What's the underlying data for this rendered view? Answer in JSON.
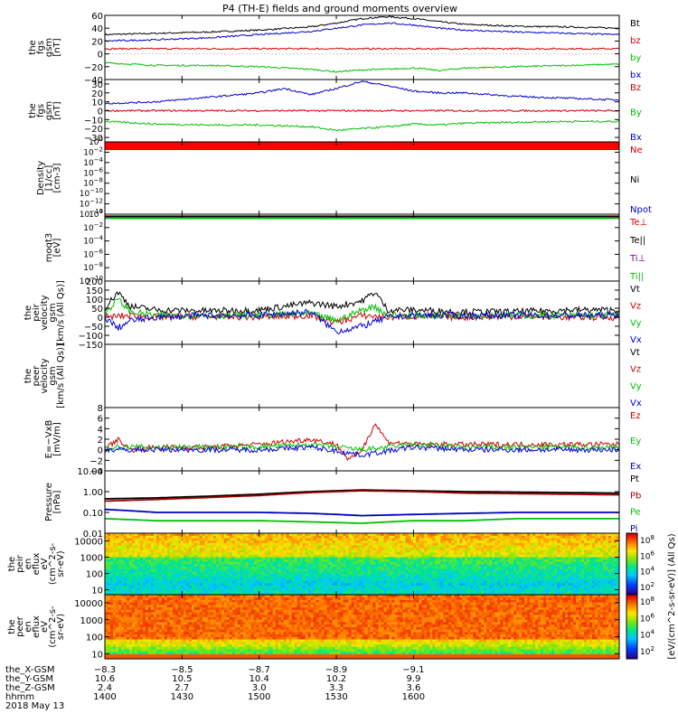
{
  "title": "P4 (TH-E) fields and ground moments overview",
  "chart_data": [
    {
      "type": "line",
      "ylabel_lines": [
        "the",
        "fgs",
        "gsm",
        "[nT]"
      ],
      "ylim": [
        -40,
        60
      ],
      "ticks": [
        -40,
        -20,
        0,
        20,
        40,
        60
      ],
      "tick_labels": [
        "−40",
        "−20",
        "0",
        "20",
        "40",
        "60"
      ],
      "legend": [
        "Bt",
        "bz",
        "by",
        "bx"
      ],
      "series": [
        {
          "name": "Bt",
          "color": "#000000",
          "x": [
            1400,
            1420,
            1440,
            1460,
            1480,
            1490,
            1500,
            1510,
            1520,
            1530,
            1540,
            1560,
            1580,
            1600
          ],
          "values": [
            30,
            32,
            34,
            37,
            42,
            48,
            55,
            58,
            55,
            50,
            46,
            43,
            42,
            40
          ]
        },
        {
          "name": "bz",
          "color": "#d00000",
          "x": [
            1400,
            1450,
            1500,
            1550,
            1600
          ],
          "values": [
            8,
            8,
            8,
            8,
            8
          ]
        },
        {
          "name": "by",
          "color": "#00c000",
          "x": [
            1400,
            1420,
            1440,
            1460,
            1480,
            1490,
            1500,
            1510,
            1520,
            1530,
            1540,
            1560,
            1580,
            1600
          ],
          "values": [
            -14,
            -18,
            -18,
            -20,
            -24,
            -28,
            -25,
            -24,
            -22,
            -26,
            -22,
            -20,
            -18,
            -16
          ]
        },
        {
          "name": "bx",
          "color": "#0000d0",
          "x": [
            1400,
            1420,
            1440,
            1460,
            1480,
            1490,
            1500,
            1510,
            1520,
            1530,
            1540,
            1560,
            1580,
            1600
          ],
          "values": [
            20,
            22,
            25,
            30,
            35,
            40,
            45,
            48,
            45,
            40,
            37,
            34,
            32,
            30
          ]
        }
      ]
    },
    {
      "type": "line",
      "ylabel_lines": [
        "the",
        "fgs",
        "gsm",
        "[nT]"
      ],
      "ylim": [
        -35,
        35
      ],
      "ticks": [
        -30,
        -20,
        -10,
        0,
        10,
        20,
        30
      ],
      "tick_labels": [
        "−30",
        "−20",
        "−10",
        "0",
        "10",
        "20",
        "30"
      ],
      "legend": [
        "Bz",
        "By",
        "Bx"
      ],
      "series": [
        {
          "name": "Bz",
          "color": "#d00000",
          "x": [
            1400,
            1450,
            1500,
            1550,
            1600
          ],
          "values": [
            0,
            0,
            0,
            0,
            0
          ]
        },
        {
          "name": "By",
          "color": "#00c000",
          "x": [
            1400,
            1420,
            1440,
            1460,
            1480,
            1490,
            1500,
            1510,
            1520,
            1530,
            1540,
            1560,
            1580,
            1600
          ],
          "values": [
            -12,
            -15,
            -16,
            -16,
            -18,
            -22,
            -20,
            -18,
            -15,
            -16,
            -14,
            -13,
            -12,
            -12
          ]
        },
        {
          "name": "Bx",
          "color": "#0000d0",
          "x": [
            1400,
            1420,
            1440,
            1460,
            1470,
            1480,
            1490,
            1500,
            1510,
            1520,
            1530,
            1540,
            1560,
            1580,
            1600
          ],
          "values": [
            8,
            10,
            15,
            20,
            25,
            18,
            25,
            33,
            28,
            22,
            20,
            20,
            16,
            14,
            12
          ]
        }
      ]
    },
    {
      "type": "line",
      "ylabel_lines": [
        "Density",
        "[1/cc]",
        "[cm-3]"
      ],
      "yscale": "log",
      "ylim": [
        1e-14,
        1
      ],
      "tick_exps": [
        0,
        -2,
        -4,
        -6,
        -8,
        -10,
        -12,
        -14
      ],
      "legend": [
        "Ne",
        "Ni",
        "Npot"
      ],
      "series": [
        {
          "name": "Ne",
          "color": "#d00000",
          "x": [
            1400,
            1600
          ],
          "values": [
            0.3,
            0.3
          ]
        },
        {
          "name": "Ni",
          "color": "#000000",
          "x": [
            1400,
            1600
          ],
          "values": [
            0.2,
            0.2
          ]
        },
        {
          "name": "Npot",
          "color": "#0000d0",
          "x": [
            1400,
            1600
          ],
          "values": [
            0.15,
            0.15
          ]
        }
      ]
    },
    {
      "type": "line",
      "ylabel_lines": [
        "moqt3",
        "[eV]"
      ],
      "yscale": "log",
      "ylim": [
        1e-10,
        1
      ],
      "tick_exps": [
        0,
        -2,
        -4,
        -6,
        -8,
        -10
      ],
      "legend": [
        "Te⊥",
        "Te||",
        "Ti⊥",
        "Ti||"
      ],
      "legend_colors": [
        "#d00000",
        "#000000",
        "#8000c0",
        "#00c000"
      ],
      "series": [
        {
          "name": "Te⊥",
          "color": "#d00000",
          "x": [
            1400,
            1600
          ],
          "values": [
            0.5,
            0.5
          ]
        },
        {
          "name": "Te||",
          "color": "#000000",
          "x": [
            1400,
            1600
          ],
          "values": [
            0.4,
            0.4
          ]
        },
        {
          "name": "Ti⊥",
          "color": "#8000c0",
          "x": [
            1400,
            1600
          ],
          "values": [
            0.3,
            0.3
          ]
        },
        {
          "name": "Ti||",
          "color": "#00c000",
          "x": [
            1400,
            1600
          ],
          "values": [
            0.25,
            0.25
          ]
        }
      ]
    },
    {
      "type": "line",
      "ylabel_lines": [
        "the",
        "peir",
        "velocity",
        "gsm",
        "[km/s (All Qs)]"
      ],
      "ylim": [
        -150,
        200
      ],
      "ticks": [
        -150,
        -100,
        -50,
        0,
        50,
        100,
        150,
        200
      ],
      "tick_labels": [
        "−150",
        "−100",
        "−50",
        "0",
        "50",
        "100",
        "150",
        "200"
      ],
      "legend": [
        "Vt",
        "Vz",
        "Vy",
        "Vx"
      ],
      "series": [
        {
          "name": "Vt",
          "color": "#000000",
          "x": [
            1400,
            1405,
            1410,
            1420,
            1440,
            1460,
            1480,
            1490,
            1500,
            1505,
            1510,
            1520,
            1540,
            1560,
            1580,
            1600
          ],
          "values": [
            50,
            140,
            60,
            40,
            35,
            40,
            80,
            60,
            90,
            140,
            40,
            40,
            30,
            30,
            40,
            40
          ]
        },
        {
          "name": "Vz",
          "color": "#d00000",
          "x": [
            1400,
            1410,
            1420,
            1440,
            1460,
            1480,
            1490,
            1500,
            1510,
            1520,
            1540,
            1560,
            1580,
            1600
          ],
          "values": [
            0,
            10,
            0,
            5,
            0,
            10,
            -30,
            10,
            0,
            5,
            0,
            5,
            0,
            0
          ]
        },
        {
          "name": "Vy",
          "color": "#00c000",
          "x": [
            1400,
            1405,
            1410,
            1420,
            1440,
            1460,
            1480,
            1490,
            1500,
            1505,
            1510,
            1520,
            1540,
            1560,
            1580,
            1600
          ],
          "values": [
            20,
            100,
            30,
            10,
            10,
            10,
            20,
            -20,
            40,
            60,
            10,
            10,
            10,
            10,
            10,
            10
          ]
        },
        {
          "name": "Vx",
          "color": "#0000d0",
          "x": [
            1400,
            1405,
            1410,
            1420,
            1440,
            1460,
            1480,
            1490,
            1500,
            1510,
            1520,
            1540,
            1560,
            1580,
            1600
          ],
          "values": [
            0,
            -60,
            -20,
            0,
            10,
            10,
            30,
            -80,
            -50,
            0,
            10,
            10,
            10,
            10,
            10
          ]
        }
      ]
    },
    {
      "type": "line",
      "ylabel_lines": [
        "the",
        "peer",
        "velocity",
        "gsm",
        "[km/s (All Qs)]"
      ],
      "ylim": [
        0,
        1
      ],
      "ticks": [],
      "tick_labels": [],
      "legend": [
        "Vt",
        "Vz",
        "Vy",
        "Vx"
      ],
      "series": []
    },
    {
      "type": "line",
      "ylabel_lines": [
        "E=−VxB",
        "[mV/m]"
      ],
      "ylim": [
        -4,
        8
      ],
      "ticks": [
        -4,
        -2,
        0,
        2,
        4,
        6,
        8
      ],
      "tick_labels": [
        "−4",
        "−2",
        "0",
        "2",
        "4",
        "6",
        "8"
      ],
      "legend": [
        "Ez",
        "Ey",
        "Ex"
      ],
      "series": [
        {
          "name": "Ez",
          "color": "#d00000",
          "x": [
            1400,
            1405,
            1410,
            1420,
            1440,
            1460,
            1480,
            1490,
            1495,
            1500,
            1505,
            1510,
            1520,
            1540,
            1560,
            1580,
            1600
          ],
          "values": [
            0,
            2,
            0,
            0.5,
            0.5,
            1,
            2,
            1,
            -2,
            0,
            5,
            1.5,
            1,
            1,
            1,
            1,
            1
          ]
        },
        {
          "name": "Ey",
          "color": "#00c000",
          "x": [
            1400,
            1420,
            1440,
            1460,
            1480,
            1500,
            1520,
            1540,
            1560,
            1580,
            1600
          ],
          "values": [
            0.5,
            0.5,
            0.5,
            0.5,
            1,
            0,
            1,
            0.5,
            0.5,
            0.5,
            0.5
          ]
        },
        {
          "name": "Ex",
          "color": "#0000d0",
          "x": [
            1400,
            1420,
            1440,
            1460,
            1480,
            1500,
            1520,
            1540,
            1560,
            1580,
            1600
          ],
          "values": [
            0,
            0,
            0,
            0,
            0.5,
            -1,
            0.5,
            0,
            0,
            0,
            0
          ]
        }
      ]
    },
    {
      "type": "line",
      "ylabel_lines": [
        "Pressure",
        "[nPa]"
      ],
      "yscale": "log",
      "ylim": [
        0.01,
        10
      ],
      "ticks": [
        0.01,
        0.1,
        1,
        10
      ],
      "tick_labels": [
        "0.01",
        "0.10",
        "1.00",
        "10.00"
      ],
      "legend": [
        "Pt",
        "Pb",
        "Pe",
        "Pi"
      ],
      "series": [
        {
          "name": "Pt",
          "color": "#000000",
          "x": [
            1400,
            1420,
            1440,
            1460,
            1480,
            1500,
            1520,
            1540,
            1560,
            1580,
            1600
          ],
          "values": [
            0.45,
            0.5,
            0.6,
            0.75,
            1.0,
            1.2,
            1.1,
            1.0,
            0.95,
            0.9,
            0.85
          ]
        },
        {
          "name": "Pb",
          "color": "#a00000",
          "x": [
            1400,
            1420,
            1440,
            1460,
            1480,
            1500,
            1520,
            1540,
            1560,
            1580,
            1600
          ],
          "values": [
            0.35,
            0.42,
            0.52,
            0.65,
            0.9,
            1.1,
            1.0,
            0.85,
            0.8,
            0.75,
            0.7
          ]
        },
        {
          "name": "Pe",
          "color": "#00c000",
          "x": [
            1400,
            1420,
            1440,
            1460,
            1480,
            1500,
            1520,
            1540,
            1560,
            1580,
            1600
          ],
          "values": [
            0.05,
            0.04,
            0.04,
            0.04,
            0.035,
            0.03,
            0.04,
            0.04,
            0.05,
            0.05,
            0.05
          ]
        },
        {
          "name": "Pi",
          "color": "#0000c0",
          "x": [
            1400,
            1420,
            1440,
            1460,
            1480,
            1500,
            1520,
            1540,
            1560,
            1580,
            1600
          ],
          "values": [
            0.14,
            0.1,
            0.1,
            0.1,
            0.09,
            0.07,
            0.08,
            0.09,
            0.1,
            0.1,
            0.1
          ]
        }
      ]
    },
    {
      "type": "heatmap",
      "ylabel_lines": [
        "the",
        "peir",
        "en",
        "eflux",
        "eV",
        "(cm^2-s-",
        "sr-eV)"
      ],
      "yscale": "log",
      "ylim": [
        5,
        30000
      ],
      "ticks": [
        10,
        100,
        1000,
        10000
      ],
      "tick_labels": [
        "10",
        "100",
        "1000",
        "10000"
      ],
      "colorbar_exps": [
        2,
        4,
        6,
        8
      ]
    },
    {
      "type": "heatmap",
      "ylabel_lines": [
        "the",
        "peer",
        "en",
        "eflux",
        "eV",
        "(cm^2-s-",
        "sr-eV)"
      ],
      "yscale": "log",
      "ylim": [
        5,
        30000
      ],
      "ticks": [
        10,
        100,
        1000,
        10000
      ],
      "tick_labels": [
        "10",
        "100",
        "1000",
        "10000"
      ],
      "colorbar_exps": [
        2,
        4,
        6,
        8
      ]
    }
  ],
  "colorbar_label": "[eV/(cm^2-s-sr-eV)] (All Qs)",
  "x_axis": {
    "xlim": [
      1400,
      1600
    ],
    "row_labels": [
      "the_X-GSM",
      "the_Y-GSM",
      "the_Z-GSM",
      "hhmm"
    ],
    "ticks": [
      {
        "x": 1400,
        "vals": [
          "−8.3",
          "10.6",
          "2.4",
          "1400"
        ]
      },
      {
        "x": 1430,
        "vals": [
          "−8.5",
          "10.5",
          "2.7",
          "1430"
        ]
      },
      {
        "x": 1460,
        "vals": [
          "−8.7",
          "10.4",
          "3.0",
          "1500"
        ]
      },
      {
        "x": 1490,
        "vals": [
          "−8.9",
          "10.2",
          "3.3",
          "1530"
        ]
      },
      {
        "x": 1520,
        "vals": [
          "−9.1",
          "9.9",
          "3.6",
          "1600"
        ]
      }
    ],
    "date": "2018 May 13"
  }
}
